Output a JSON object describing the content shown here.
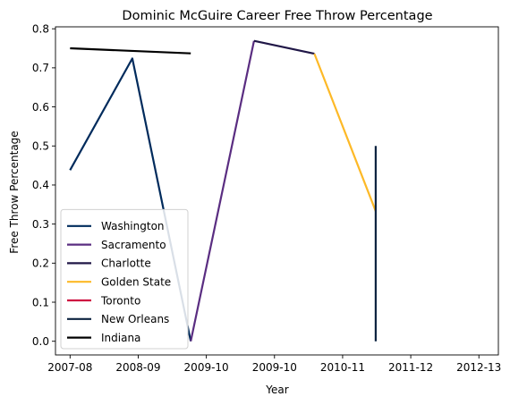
{
  "chart_data": {
    "type": "line",
    "title": "Dominic McGuire Career Free Throw Percentage",
    "xlabel": "Year",
    "ylabel": "Free Throw Percentage",
    "xlim": [
      -0.15,
      4.4
    ],
    "ylim": [
      -0.035,
      0.805
    ],
    "x_ticks": [
      {
        "value": 0,
        "label": "2007-08"
      },
      {
        "value": 0.7,
        "label": "2008-09"
      },
      {
        "value": 1.4,
        "label": "2009-10"
      },
      {
        "value": 2.1,
        "label": "2009-10"
      },
      {
        "value": 2.8,
        "label": "2010-11"
      },
      {
        "value": 3.5,
        "label": "2011-12"
      },
      {
        "value": 4.2,
        "label": "2012-13"
      }
    ],
    "y_ticks": [
      {
        "value": 0.0,
        "label": "0.0"
      },
      {
        "value": 0.1,
        "label": "0.1"
      },
      {
        "value": 0.2,
        "label": "0.2"
      },
      {
        "value": 0.3,
        "label": "0.3"
      },
      {
        "value": 0.4,
        "label": "0.4"
      },
      {
        "value": 0.5,
        "label": "0.5"
      },
      {
        "value": 0.6,
        "label": "0.6"
      },
      {
        "value": 0.7,
        "label": "0.7"
      },
      {
        "value": 0.8,
        "label": "0.8"
      }
    ],
    "legend_position": "lower-left",
    "series": [
      {
        "name": "Washington",
        "color": "#002B5C",
        "points": [
          [
            0.0,
            0.438
          ],
          [
            0.64,
            0.724
          ],
          [
            1.24,
            0.0
          ]
        ]
      },
      {
        "name": "Sacramento",
        "color": "#5A2D81",
        "points": [
          [
            1.24,
            0.0
          ],
          [
            1.89,
            0.769
          ]
        ]
      },
      {
        "name": "Charlotte",
        "color": "#201747",
        "points": [
          [
            1.89,
            0.769
          ],
          [
            2.51,
            0.736
          ]
        ]
      },
      {
        "name": "Golden State",
        "color": "#FDB927",
        "points": [
          [
            2.51,
            0.736
          ],
          [
            3.14,
            0.333
          ]
        ]
      },
      {
        "name": "Toronto",
        "color": "#CE1141",
        "points": []
      },
      {
        "name": "New Orleans",
        "color": "#0C2340",
        "points": [
          [
            3.14,
            0.5
          ],
          [
            3.14,
            0.0
          ]
        ]
      },
      {
        "name": "Indiana",
        "color": "#000000",
        "points": [
          [
            0.0,
            0.75
          ],
          [
            1.24,
            0.737
          ]
        ]
      }
    ]
  }
}
